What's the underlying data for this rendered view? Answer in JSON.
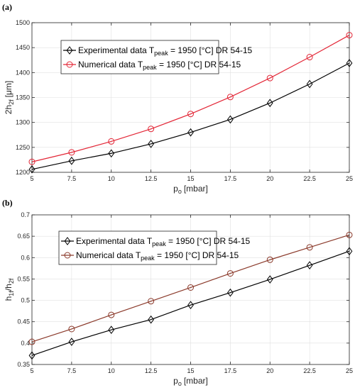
{
  "chart_data": [
    {
      "panel_tag": "(a)",
      "type": "line",
      "x": [
        5,
        7.5,
        10,
        12.5,
        15,
        17.5,
        20,
        22.5,
        25
      ],
      "xlabel": "p",
      "xlabel_sub": "o",
      "xlabel_unit": "[mbar]",
      "ylabel": "2h",
      "ylabel_sub": "2f",
      "ylabel_unit": "[μm]",
      "xlim": [
        5,
        25
      ],
      "ylim": [
        1200,
        1500
      ],
      "xticks": [
        "5",
        "7.5",
        "10",
        "12.5",
        "15",
        "17.5",
        "20",
        "22.5",
        "25"
      ],
      "yticks": [
        "1200",
        "1250",
        "1300",
        "1350",
        "1400",
        "1450",
        "1500"
      ],
      "ytick_values": [
        1200,
        1250,
        1300,
        1350,
        1400,
        1450,
        1500
      ],
      "grid": true,
      "legend_position": "top-left",
      "series": [
        {
          "legend_prefix": "Experimental data T",
          "legend_sub": "peak",
          "legend_suffix": " = 1950 [°C] DR 54-15",
          "color": "#000000",
          "marker": "diamond",
          "values": [
            1206,
            1223,
            1238,
            1257,
            1280,
            1306,
            1339,
            1377,
            1419
          ]
        },
        {
          "legend_prefix": "Numerical data T",
          "legend_sub": "peak",
          "legend_suffix": " = 1950 [°C] DR 54-15",
          "color": "#e32636",
          "marker": "circle",
          "values": [
            1221,
            1240,
            1262,
            1287,
            1317,
            1351,
            1389,
            1431,
            1475
          ]
        }
      ]
    },
    {
      "panel_tag": "(b)",
      "type": "line",
      "x": [
        5,
        7.5,
        10,
        12.5,
        15,
        17.5,
        20,
        22.5,
        25
      ],
      "xlabel": "p",
      "xlabel_sub": "o",
      "xlabel_unit": "[mbar]",
      "ylabel": "h",
      "ylabel_sub": "1f",
      "ylabel_mid": "/h",
      "ylabel_sub2": "2f",
      "ylabel_unit": "",
      "xlim": [
        5,
        25
      ],
      "ylim": [
        0.35,
        0.7
      ],
      "xticks": [
        "5",
        "7.5",
        "10",
        "12.5",
        "15",
        "17.5",
        "20",
        "22.5",
        "25"
      ],
      "yticks": [
        "0.35",
        "0.4",
        "0.45",
        "0.5",
        "0.55",
        "0.6",
        "0.65",
        "0.7"
      ],
      "ytick_values": [
        0.35,
        0.4,
        0.45,
        0.5,
        0.55,
        0.6,
        0.65,
        0.7
      ],
      "grid": true,
      "legend_position": "top-left",
      "series": [
        {
          "legend_prefix": "Experimental data T",
          "legend_sub": "peak",
          "legend_suffix": " = 1950 [°C] DR 54-15",
          "color": "#000000",
          "marker": "diamond",
          "values": [
            0.371,
            0.403,
            0.431,
            0.455,
            0.489,
            0.518,
            0.549,
            0.582,
            0.615
          ]
        },
        {
          "legend_prefix": "Numerical data T",
          "legend_sub": "peak",
          "legend_suffix": " = 1950 [°C] DR 54-15",
          "color": "#8b3a2b",
          "marker": "circle",
          "values": [
            0.403,
            0.433,
            0.466,
            0.498,
            0.53,
            0.563,
            0.595,
            0.624,
            0.653
          ]
        }
      ]
    }
  ]
}
